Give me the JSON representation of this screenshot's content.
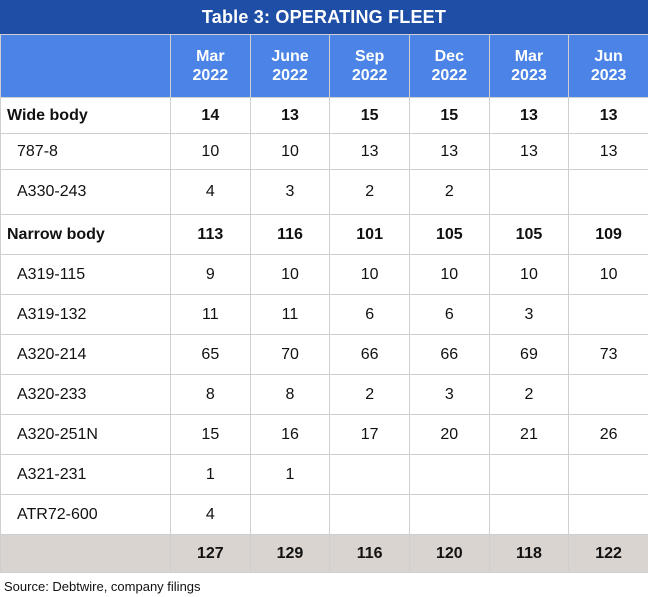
{
  "title": "Table 3: OPERATING FLEET",
  "columns": [
    {
      "line1": "Mar",
      "line2": "2022"
    },
    {
      "line1": "June",
      "line2": "2022"
    },
    {
      "line1": "Sep",
      "line2": "2022"
    },
    {
      "line1": "Dec",
      "line2": "2022"
    },
    {
      "line1": "Mar",
      "line2": "2023"
    },
    {
      "line1": "Jun",
      "line2": "2023"
    }
  ],
  "rows": [
    {
      "label": "Wide body",
      "values": [
        "14",
        "13",
        "15",
        "15",
        "13",
        "13"
      ]
    },
    {
      "label": "787-8",
      "values": [
        "10",
        "10",
        "13",
        "13",
        "13",
        "13"
      ]
    },
    {
      "label": "A330-243",
      "values": [
        "4",
        "3",
        "2",
        "2",
        "",
        ""
      ]
    },
    {
      "label": "Narrow body",
      "values": [
        "113",
        "116",
        "101",
        "105",
        "105",
        "109"
      ]
    },
    {
      "label": "A319-115",
      "values": [
        "9",
        "10",
        "10",
        "10",
        "10",
        "10"
      ]
    },
    {
      "label": "A319-132",
      "values": [
        "11",
        "11",
        "6",
        "6",
        "3",
        ""
      ]
    },
    {
      "label": "A320-214",
      "values": [
        "65",
        "70",
        "66",
        "66",
        "69",
        "73"
      ]
    },
    {
      "label": "A320-233",
      "values": [
        "8",
        "8",
        "2",
        "3",
        "2",
        ""
      ]
    },
    {
      "label": "A320-251N",
      "values": [
        "15",
        "16",
        "17",
        "20",
        "21",
        "26"
      ]
    },
    {
      "label": "A321-231",
      "values": [
        "1",
        "1",
        "",
        "",
        "",
        ""
      ]
    },
    {
      "label": "ATR72-600",
      "values": [
        "4",
        "",
        "",
        "",
        "",
        ""
      ]
    },
    {
      "label": "",
      "values": [
        "127",
        "129",
        "116",
        "120",
        "118",
        "122"
      ]
    }
  ],
  "source": "Source: Debtwire, company filings",
  "colors": {
    "title_bg": "#1f4ea6",
    "header_bg": "#4b84e6",
    "total_bg": "#d9d4cf"
  }
}
